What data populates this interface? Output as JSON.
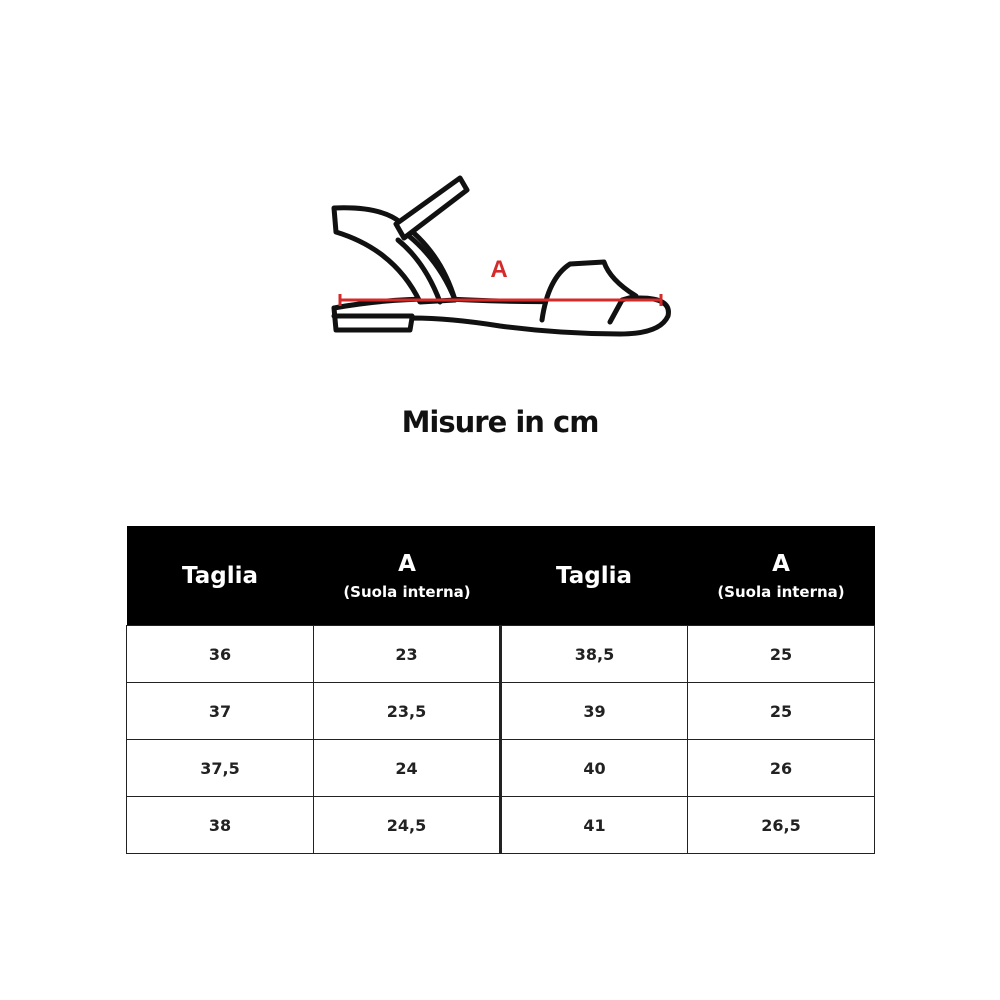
{
  "diagram": {
    "measure_label": "A",
    "measure_color": "#d42a2a",
    "icon": "sandal-outline"
  },
  "title": "Misure in cm",
  "table": {
    "headers": [
      {
        "main": "Taglia",
        "sub": ""
      },
      {
        "main": "A",
        "sub": "(Suola interna)"
      },
      {
        "main": "Taglia",
        "sub": ""
      },
      {
        "main": "A",
        "sub": "(Suola interna)"
      }
    ],
    "rows": [
      [
        "36",
        "23",
        "38,5",
        "25"
      ],
      [
        "37",
        "23,5",
        "39",
        "25"
      ],
      [
        "37,5",
        "24",
        "40",
        "26"
      ],
      [
        "38",
        "24,5",
        "41",
        "26,5"
      ]
    ]
  }
}
